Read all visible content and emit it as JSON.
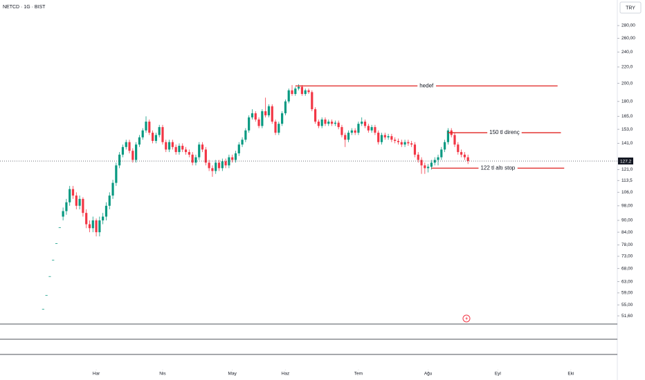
{
  "chart_data": {
    "type": "candlestick",
    "title": "NETCD · 1G · BIST",
    "currency": "TRY",
    "up_color": "#089981",
    "down_color": "#f23645",
    "annotation_color": "#e0201f",
    "log_scale": true,
    "grid": false,
    "xlim": [
      -13,
      173
    ],
    "xticks": [
      {
        "value": 16,
        "label": "Har"
      },
      {
        "value": 36,
        "label": "Nis"
      },
      {
        "value": 57,
        "label": "May"
      },
      {
        "value": 73,
        "label": "Haz"
      },
      {
        "value": 95,
        "label": "Tem"
      },
      {
        "value": 116,
        "label": "Ağu"
      },
      {
        "value": 137,
        "label": "Eyl"
      },
      {
        "value": 159,
        "label": "Eki"
      }
    ],
    "ylim": [
      49.2,
      325
    ],
    "yticks": [
      {
        "value": 280,
        "label": "280,00"
      },
      {
        "value": 260,
        "label": "260,00"
      },
      {
        "value": 240,
        "label": "240,0"
      },
      {
        "value": 220,
        "label": "220,0"
      },
      {
        "value": 200,
        "label": "200,0"
      },
      {
        "value": 180,
        "label": "180,0"
      },
      {
        "value": 165,
        "label": "165,0"
      },
      {
        "value": 153,
        "label": "153,0"
      },
      {
        "value": 141,
        "label": "141,0"
      },
      {
        "value": 121,
        "label": "121,0"
      },
      {
        "value": 113.5,
        "label": "113,5"
      },
      {
        "value": 106,
        "label": "106,0"
      },
      {
        "value": 98,
        "label": "98,00"
      },
      {
        "value": 90,
        "label": "90,00"
      },
      {
        "value": 84,
        "label": "84,00"
      },
      {
        "value": 78,
        "label": "78,00"
      },
      {
        "value": 73,
        "label": "73,00"
      },
      {
        "value": 68,
        "label": "68,00"
      },
      {
        "value": 63,
        "label": "63,00"
      },
      {
        "value": 59,
        "label": "59,00"
      },
      {
        "value": 55,
        "label": "55,00"
      },
      {
        "value": 51.6,
        "label": "51,60"
      }
    ],
    "last_price": {
      "value": 127.2,
      "label": "127,2"
    },
    "open": [
      53.7,
      58.2,
      65,
      71.5,
      78.8,
      86.4,
      92,
      95,
      100,
      108,
      104,
      98,
      102,
      94,
      88,
      86,
      90,
      84,
      90,
      92,
      98,
      104,
      112,
      124,
      132,
      138,
      142,
      135,
      128,
      140,
      146,
      152,
      160,
      150,
      143,
      148,
      155,
      142,
      136,
      142,
      138,
      134,
      139,
      136,
      134,
      132,
      126,
      130,
      140,
      136,
      126,
      122,
      120,
      126,
      122,
      127,
      124,
      130,
      128,
      133,
      140,
      144,
      152,
      164,
      168,
      162,
      156,
      170,
      166,
      175,
      160,
      150,
      158,
      168,
      180,
      192,
      188,
      194,
      196,
      188,
      192,
      190,
      172,
      160,
      156,
      162,
      158,
      160,
      158,
      159,
      155,
      148,
      144,
      150,
      152,
      150,
      158,
      160,
      156,
      152,
      155,
      150,
      142,
      148,
      146,
      147,
      144,
      143,
      142,
      140,
      142,
      141,
      140,
      132,
      128,
      124,
      122,
      123,
      126,
      128,
      130,
      136,
      142,
      152,
      148,
      140,
      134,
      132,
      130
    ],
    "high": [
      53.7,
      58.2,
      65,
      71.5,
      78.8,
      86.4,
      97,
      102,
      110,
      110,
      106,
      104,
      103,
      96,
      90,
      92,
      91,
      92,
      94,
      100,
      106,
      114,
      126,
      134,
      140,
      144,
      144,
      137,
      142,
      148,
      154,
      165,
      162,
      152,
      150,
      157,
      157,
      144,
      144,
      144,
      140,
      141,
      141,
      138,
      136,
      134,
      132,
      142,
      142,
      138,
      128,
      124,
      128,
      128,
      129,
      129,
      132,
      132,
      135,
      142,
      146,
      154,
      166,
      172,
      170,
      164,
      172,
      184,
      177,
      177,
      162,
      160,
      170,
      182,
      194,
      198,
      196,
      199,
      198,
      194,
      194,
      192,
      174,
      162,
      164,
      164,
      162,
      162,
      161,
      161,
      157,
      150,
      152,
      154,
      154,
      160,
      164,
      162,
      158,
      157,
      157,
      152,
      150,
      150,
      149,
      149,
      146,
      145,
      144,
      144,
      144,
      143,
      142,
      134,
      130,
      126,
      125,
      128,
      130,
      132,
      138,
      144,
      154,
      154,
      150,
      142,
      136,
      134,
      132
    ],
    "low": [
      53.7,
      58.2,
      65,
      71.5,
      78.8,
      86.4,
      90,
      93,
      98,
      102,
      96,
      96,
      92,
      86,
      84,
      84,
      82,
      82,
      88,
      90,
      96,
      102,
      110,
      122,
      130,
      136,
      133,
      126,
      126,
      138,
      144,
      150,
      148,
      141,
      141,
      146,
      140,
      134,
      134,
      136,
      132,
      132,
      134,
      132,
      130,
      124,
      124,
      128,
      134,
      124,
      120,
      116,
      118,
      120,
      120,
      122,
      122,
      126,
      126,
      131,
      138,
      142,
      150,
      162,
      160,
      154,
      154,
      164,
      164,
      158,
      148,
      148,
      156,
      166,
      178,
      186,
      186,
      192,
      186,
      186,
      188,
      170,
      158,
      154,
      154,
      156,
      156,
      156,
      156,
      153,
      146,
      138,
      142,
      148,
      148,
      148,
      156,
      154,
      150,
      150,
      148,
      140,
      140,
      144,
      144,
      142,
      141,
      140,
      138,
      138,
      139,
      138,
      130,
      126,
      118,
      118,
      119,
      121,
      124,
      124,
      128,
      134,
      140,
      146,
      138,
      132,
      130,
      128,
      125
    ],
    "close": [
      53.7,
      58.2,
      65,
      71.5,
      78.8,
      86.4,
      95,
      100,
      108,
      104,
      98,
      102,
      94,
      88,
      86,
      90,
      84,
      90,
      92,
      98,
      104,
      112,
      124,
      132,
      138,
      142,
      135,
      128,
      140,
      146,
      152,
      160,
      150,
      143,
      148,
      155,
      142,
      136,
      142,
      138,
      134,
      139,
      136,
      134,
      132,
      126,
      130,
      140,
      136,
      126,
      122,
      120,
      126,
      122,
      127,
      124,
      130,
      128,
      133,
      140,
      144,
      152,
      164,
      168,
      162,
      156,
      170,
      166,
      175,
      160,
      150,
      158,
      168,
      180,
      192,
      188,
      194,
      196,
      188,
      192,
      190,
      172,
      160,
      156,
      162,
      158,
      160,
      158,
      159,
      155,
      148,
      144,
      150,
      152,
      150,
      158,
      160,
      156,
      152,
      155,
      150,
      142,
      148,
      146,
      147,
      144,
      143,
      142,
      140,
      142,
      141,
      140,
      132,
      128,
      124,
      122,
      123,
      126,
      128,
      130,
      136,
      142,
      152,
      148,
      140,
      134,
      132,
      130,
      127.2
    ],
    "annotations": [
      {
        "label": "hedef",
        "value": 197,
        "x": [
          76,
          155
        ]
      },
      {
        "label": "150 tl direnç",
        "value": 150,
        "x": [
          122,
          156
        ]
      },
      {
        "label": "122 tl altı stop",
        "value": 122,
        "x": [
          117,
          157
        ]
      }
    ]
  }
}
